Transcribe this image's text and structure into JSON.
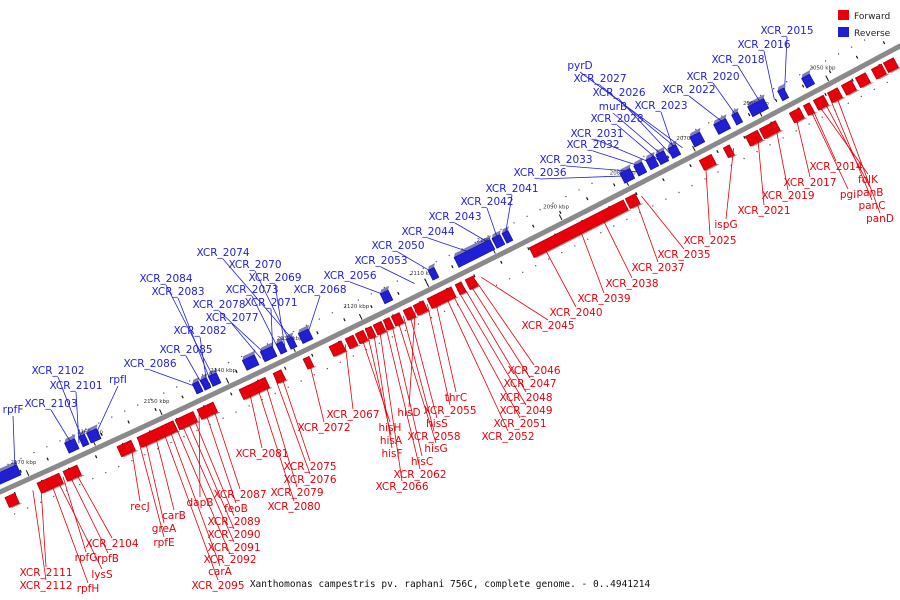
{
  "title": "Xanthomonas campestris pv. raphani 756C, complete genome. - 0..4941214",
  "colors": {
    "forward": "#e8000b",
    "reverse": "#1f1fd6",
    "axis": "#8a8a8a",
    "tick": "#111111"
  },
  "legend": [
    {
      "label": "Forward",
      "color": "#e8000b"
    },
    {
      "label": "Reverse",
      "color": "#1f1fd6"
    }
  ],
  "axis": {
    "start_kbp": 2050,
    "end_kbp": 2170
  },
  "tick_labels": [
    "2050 kbp",
    "2060 kbp",
    "2070 kbp",
    "2080 kbp",
    "2090 kbp",
    "2100 kbp",
    "2110 kbp",
    "2120 kbp",
    "2130 kbp",
    "2140 kbp",
    "2150 kbp",
    "2160 kbp",
    "2170 kbp"
  ],
  "chart_data": {
    "type": "linear genome map (circular map section)",
    "title": "Xanthomonas campestris pv. raphani 756C, complete genome. - 0..4941214",
    "forward_labels": [
      "XCR_2014",
      "folK",
      "panB",
      "pgi",
      "panC",
      "panD",
      "XCR_2017",
      "XCR_2019",
      "XCR_2021",
      "ispG",
      "XCR_2025",
      "XCR_2035",
      "XCR_2037",
      "XCR_2038",
      "XCR_2039",
      "XCR_2040",
      "XCR_2045",
      "XCR_2046",
      "XCR_2047",
      "XCR_2048",
      "XCR_2049",
      "XCR_2051",
      "XCR_2052",
      "thrC",
      "XCR_2055",
      "hisD",
      "hisS",
      "XCR_2058",
      "hisG",
      "hisC",
      "XCR_2062",
      "XCR_2066",
      "hisF",
      "hisA",
      "hisH",
      "XCR_2067",
      "XCR_2072",
      "XCR_2075",
      "XCR_2076",
      "XCR_2079",
      "XCR_2080",
      "XCR_2081",
      "XCR_2087",
      "feoB",
      "dapB",
      "XCR_2089",
      "XCR_2090",
      "XCR_2091",
      "XCR_2092",
      "carA",
      "XCR_2095",
      "recJ",
      "carB",
      "greA",
      "rpfE",
      "XCR_2104",
      "rpfB",
      "rpfG",
      "lysS",
      "rpfH",
      "XCR_2111",
      "XCR_2112"
    ],
    "reverse_labels": [
      "XCR_2015",
      "XCR_2016",
      "XCR_2018",
      "XCR_2020",
      "XCR_2022",
      "pyrD",
      "XCR_2027",
      "XCR_2026",
      "murB",
      "XCR_2023",
      "XCR_2028",
      "XCR_2031",
      "XCR_2032",
      "XCR_2033",
      "XCR_2036",
      "XCR_2041",
      "XCR_2042",
      "XCR_2043",
      "XCR_2044",
      "XCR_2050",
      "XCR_2053",
      "XCR_2056",
      "XCR_2068",
      "XCR_2074",
      "XCR_2070",
      "XCR_2069",
      "XCR_2073",
      "XCR_2071",
      "XCR_2078",
      "XCR_2077",
      "XCR_2084",
      "XCR_2083",
      "XCR_2082",
      "XCR_2085",
      "XCR_2086",
      "rpfI",
      "XCR_2102",
      "XCR_2101",
      "XCR_2103",
      "rpfF"
    ]
  }
}
